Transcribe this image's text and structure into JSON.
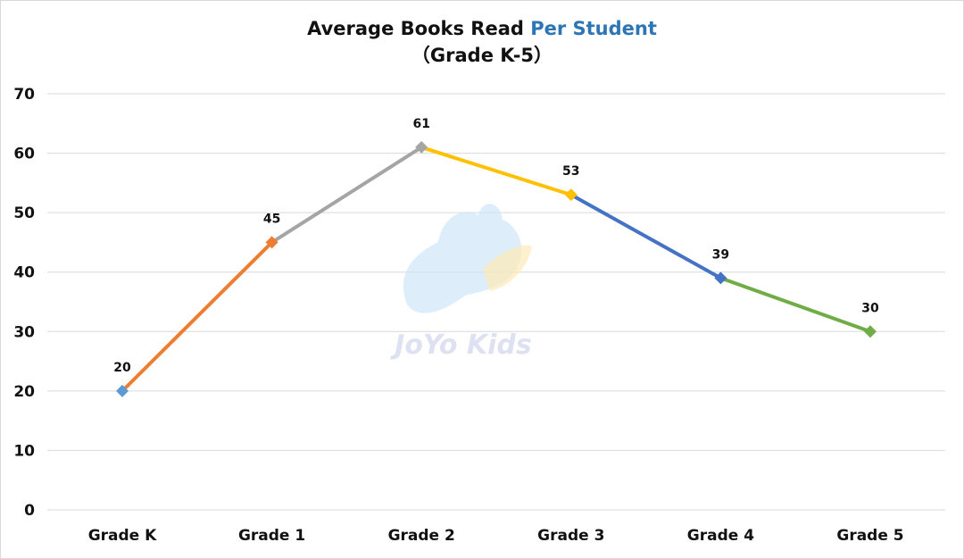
{
  "chart_data": {
    "type": "line",
    "title_main": "Average Books Read ",
    "title_accent": "Per Student",
    "subtitle": "（Grade K-5）",
    "categories": [
      "Grade K",
      "Grade 1",
      "Grade 2",
      "Grade 3",
      "Grade 4",
      "Grade 5"
    ],
    "values": [
      20,
      45,
      61,
      53,
      39,
      30
    ],
    "segment_colors": [
      "#ed7d31",
      "#a5a5a5",
      "#ffc000",
      "#4472c4",
      "#70ad47"
    ],
    "point_colors": [
      "#5b9bd5",
      "#ed7d31",
      "#a5a5a5",
      "#ffc000",
      "#4472c4",
      "#70ad47"
    ],
    "ylim": [
      0,
      70
    ],
    "yticks": [
      0,
      10,
      20,
      30,
      40,
      50,
      60,
      70
    ],
    "grid": true,
    "legend": "none",
    "title_accent_color": "#2e75b6"
  },
  "watermark": {
    "text": "JoYo Kids"
  }
}
